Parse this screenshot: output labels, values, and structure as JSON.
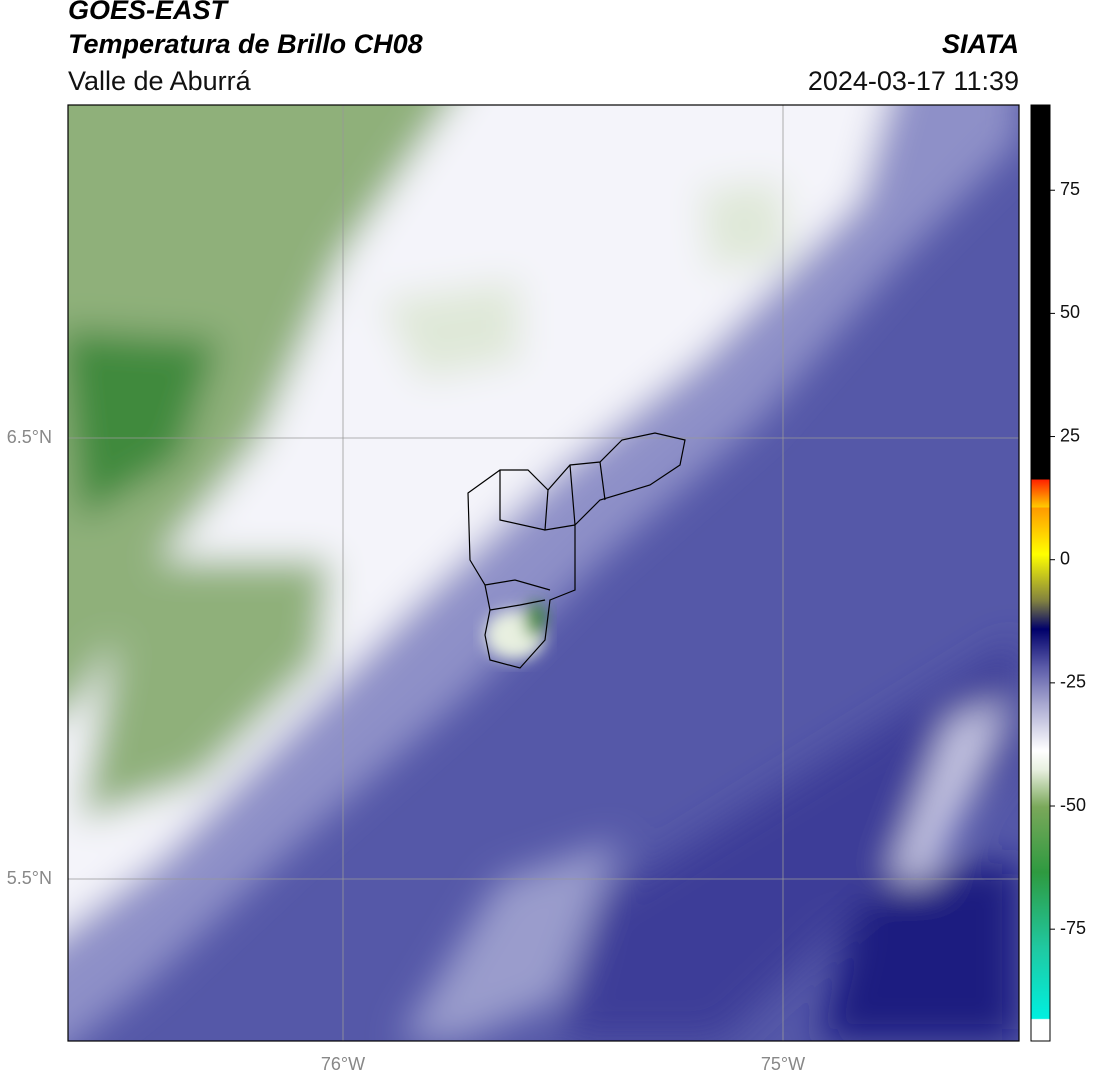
{
  "header": {
    "title": "GOES-EAST",
    "subtitle": "Temperatura de Brillo CH08",
    "region": "Valle de Aburrá",
    "source": "SIATA",
    "datetime": "2024-03-17 11:39"
  },
  "map": {
    "lat_labels": [
      "6.5°N",
      "5.5°N"
    ],
    "lon_labels": [
      "76°W",
      "75°W"
    ]
  },
  "colorbar": {
    "range": [
      -97.7,
      92.3
    ],
    "ticks": [
      75,
      50,
      25,
      0,
      -25,
      -50,
      -75
    ]
  }
}
